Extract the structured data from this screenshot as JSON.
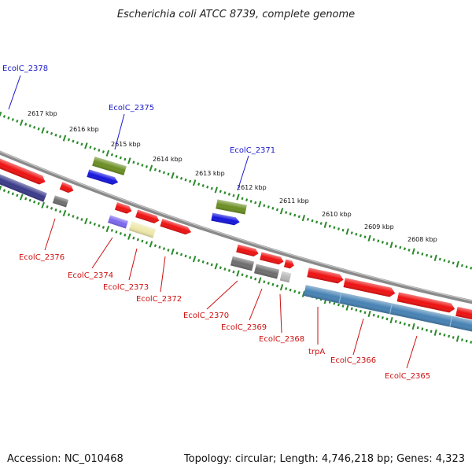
{
  "title": "Escherichia coli ATCC 8739, complete genome",
  "footer": {
    "accession": "Accession: NC_010468",
    "summary": "Topology: circular; Length: 4,746,218 bp; Genes: 4,323"
  },
  "colors": {
    "backbone": "#8a8a8a",
    "ticks": "#2a8a2a",
    "label_top": "#1a1acc",
    "label_bottom": "#cc1111",
    "gene_red": "#ee1111",
    "gene_green": "#6b8e23",
    "gene_blue": "#1515dd",
    "gene_navy": "#3a3a8a",
    "gene_gray": "#6e6e6e",
    "gene_violet": "#7b68ee",
    "gene_khaki": "#eee8aa",
    "gene_light_gray": "#b8b8b8",
    "gene_steel": "#4682b4"
  },
  "scale_labels": [
    "2617 kbp",
    "2616 kbp",
    "2615 kbp",
    "2614 kbp",
    "2613 kbp",
    "2612 kbp",
    "2611 kbp",
    "2610 kbp",
    "2609 kbp",
    "2608 kbp"
  ],
  "top_labels": [
    "EcolC_2378",
    "EcolC_2375",
    "EcolC_2371"
  ],
  "bottom_labels": [
    "EcolC_2376",
    "EcolC_2374",
    "EcolC_2373",
    "EcolC_2372",
    "EcolC_2370",
    "EcolC_2369",
    "EcolC_2368",
    "trpA",
    "EcolC_2366",
    "EcolC_2365"
  ]
}
